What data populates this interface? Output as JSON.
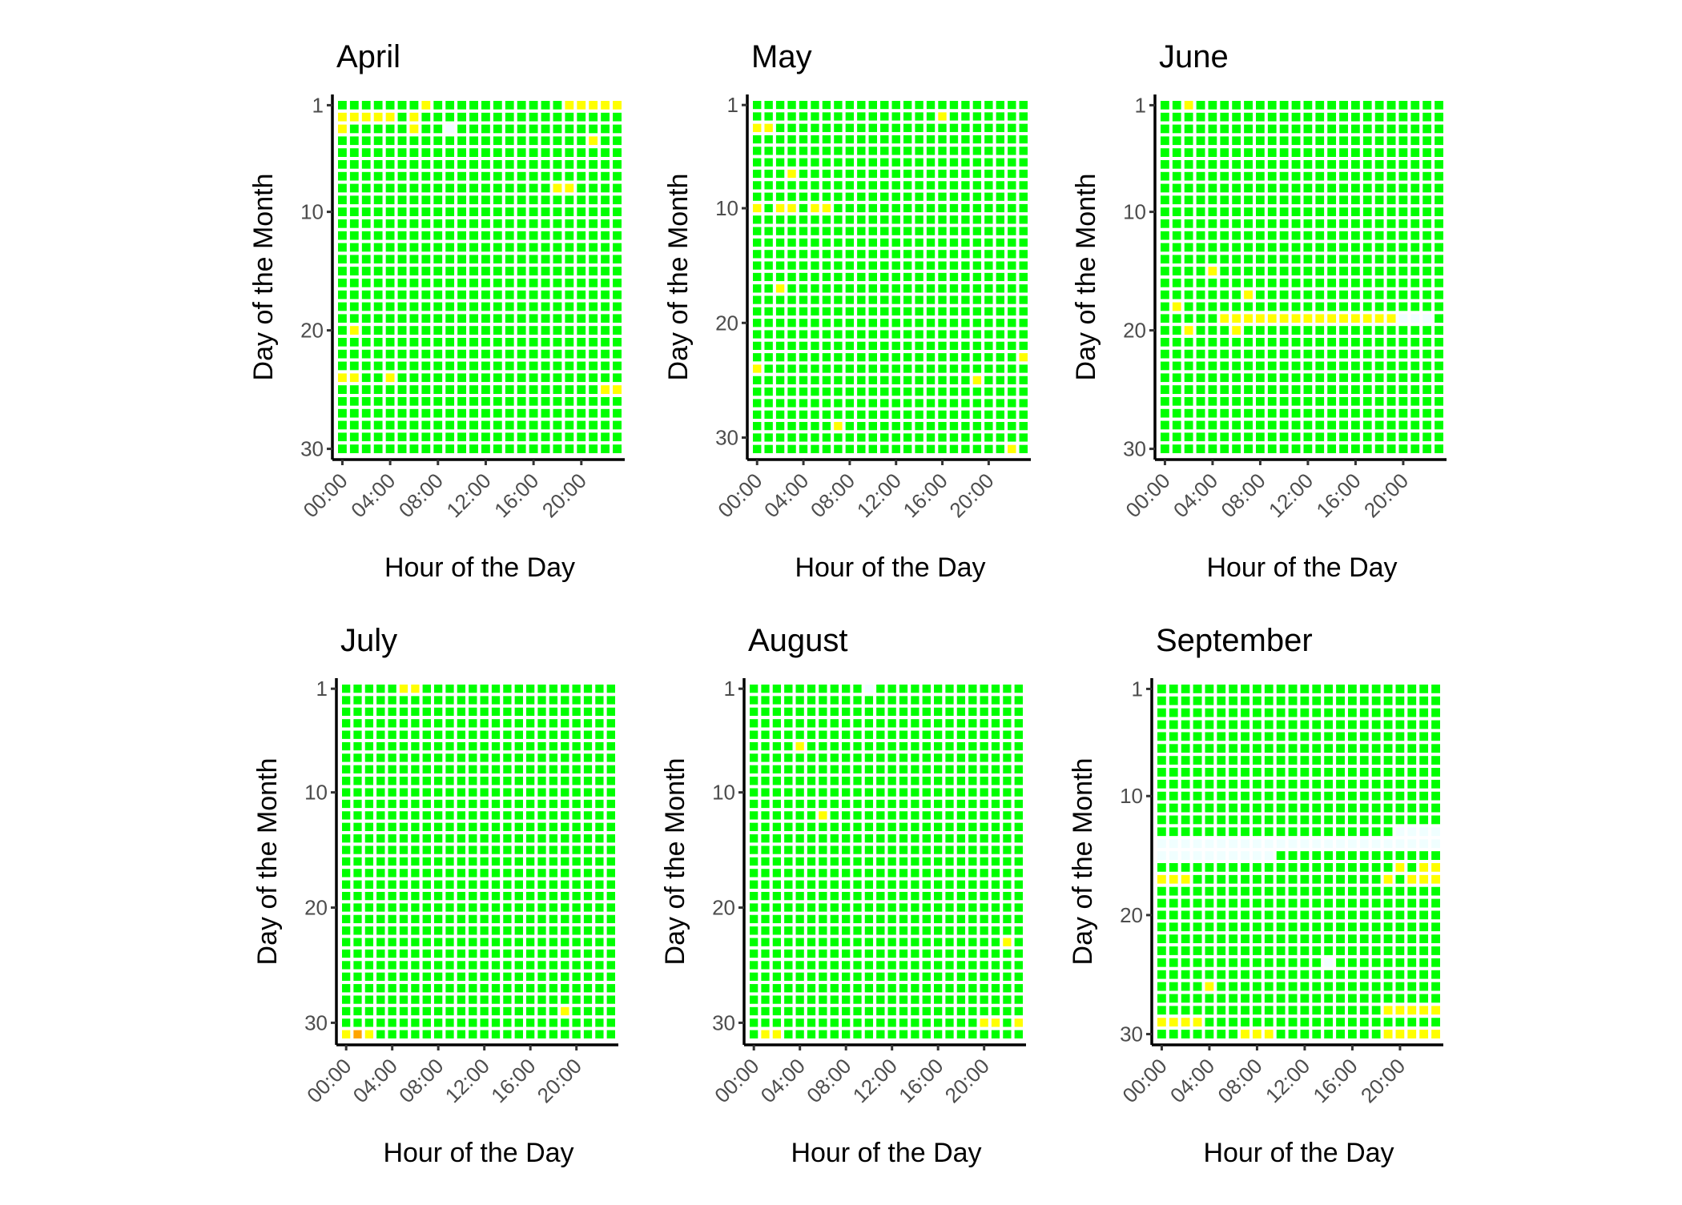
{
  "chart_data": [
    {
      "type": "heatmap",
      "title": "April",
      "xlabel": "Hour of the Day",
      "ylabel": "Day of the Month",
      "days": 30,
      "x_ticks": [
        "00:00",
        "04:00",
        "08:00",
        "12:00",
        "16:00",
        "20:00"
      ],
      "y_ticks": [
        1,
        10,
        20,
        30
      ],
      "default_color": "green",
      "cells": [
        {
          "day": 1,
          "hours": [
            7,
            19,
            20,
            21,
            22,
            23
          ],
          "color": "yellow"
        },
        {
          "day": 2,
          "hours": [
            0,
            1,
            2,
            3,
            4,
            6
          ],
          "color": "yellow"
        },
        {
          "day": 3,
          "hours": [
            0,
            6
          ],
          "color": "yellow"
        },
        {
          "day": 3,
          "hours": [
            9
          ],
          "color": "azure"
        },
        {
          "day": 4,
          "hours": [
            21
          ],
          "color": "yellow"
        },
        {
          "day": 8,
          "hours": [
            18,
            19
          ],
          "color": "yellow"
        },
        {
          "day": 20,
          "hours": [
            1
          ],
          "color": "yellow"
        },
        {
          "day": 24,
          "hours": [
            0,
            1,
            4
          ],
          "color": "yellow"
        },
        {
          "day": 25,
          "hours": [
            22,
            23
          ],
          "color": "yellow"
        }
      ]
    },
    {
      "type": "heatmap",
      "title": "May",
      "xlabel": "Hour of the Day",
      "ylabel": "Day of the Month",
      "days": 31,
      "x_ticks": [
        "00:00",
        "04:00",
        "08:00",
        "12:00",
        "16:00",
        "20:00"
      ],
      "y_ticks": [
        1,
        10,
        20,
        30
      ],
      "default_color": "green",
      "cells": [
        {
          "day": 2,
          "hours": [
            16
          ],
          "color": "yellow"
        },
        {
          "day": 3,
          "hours": [
            0,
            1
          ],
          "color": "yellow"
        },
        {
          "day": 7,
          "hours": [
            3
          ],
          "color": "yellow"
        },
        {
          "day": 10,
          "hours": [
            0,
            2,
            3,
            5,
            6
          ],
          "color": "yellow"
        },
        {
          "day": 17,
          "hours": [
            2
          ],
          "color": "yellow"
        },
        {
          "day": 23,
          "hours": [
            23
          ],
          "color": "yellow"
        },
        {
          "day": 24,
          "hours": [
            0
          ],
          "color": "yellow"
        },
        {
          "day": 25,
          "hours": [
            19
          ],
          "color": "yellow"
        },
        {
          "day": 29,
          "hours": [
            7
          ],
          "color": "yellow"
        },
        {
          "day": 31,
          "hours": [
            22
          ],
          "color": "yellow"
        }
      ]
    },
    {
      "type": "heatmap",
      "title": "June",
      "xlabel": "Hour of the Day",
      "ylabel": "Day of the Month",
      "days": 30,
      "x_ticks": [
        "00:00",
        "04:00",
        "08:00",
        "12:00",
        "16:00",
        "20:00"
      ],
      "y_ticks": [
        1,
        10,
        20,
        30
      ],
      "default_color": "green",
      "cells": [
        {
          "day": 1,
          "hours": [
            2
          ],
          "color": "yellow"
        },
        {
          "day": 15,
          "hours": [
            4
          ],
          "color": "yellow"
        },
        {
          "day": 17,
          "hours": [
            7
          ],
          "color": "yellow"
        },
        {
          "day": 18,
          "hours": [
            1
          ],
          "color": "yellow"
        },
        {
          "day": 19,
          "hours": [
            5,
            6,
            7,
            8,
            9,
            10,
            11,
            12,
            13,
            14,
            15,
            16,
            17,
            18,
            19
          ],
          "color": "yellow"
        },
        {
          "day": 19,
          "hours": [
            20,
            21,
            22
          ],
          "color": "azure"
        },
        {
          "day": 20,
          "hours": [
            2,
            6
          ],
          "color": "yellow"
        }
      ]
    },
    {
      "type": "heatmap",
      "title": "July",
      "xlabel": "Hour of the Day",
      "ylabel": "Day of the Month",
      "days": 31,
      "x_ticks": [
        "00:00",
        "04:00",
        "08:00",
        "12:00",
        "16:00",
        "20:00"
      ],
      "y_ticks": [
        1,
        10,
        20,
        30
      ],
      "default_color": "green",
      "cells": [
        {
          "day": 1,
          "hours": [
            5,
            6
          ],
          "color": "yellow"
        },
        {
          "day": 29,
          "hours": [
            19
          ],
          "color": "yellow"
        },
        {
          "day": 31,
          "hours": [
            0,
            2
          ],
          "color": "yellow"
        },
        {
          "day": 31,
          "hours": [
            1
          ],
          "color": "orange"
        }
      ]
    },
    {
      "type": "heatmap",
      "title": "August",
      "xlabel": "Hour of the Day",
      "ylabel": "Day of the Month",
      "days": 31,
      "x_ticks": [
        "00:00",
        "04:00",
        "08:00",
        "12:00",
        "16:00",
        "20:00"
      ],
      "y_ticks": [
        1,
        10,
        20,
        30
      ],
      "default_color": "green",
      "cells": [
        {
          "day": 1,
          "hours": [
            10
          ],
          "color": "azure"
        },
        {
          "day": 6,
          "hours": [
            4
          ],
          "color": "yellow"
        },
        {
          "day": 12,
          "hours": [
            6
          ],
          "color": "yellow"
        },
        {
          "day": 23,
          "hours": [
            22
          ],
          "color": "yellow"
        },
        {
          "day": 30,
          "hours": [
            20,
            21,
            23
          ],
          "color": "yellow"
        },
        {
          "day": 31,
          "hours": [
            1,
            2
          ],
          "color": "yellow"
        }
      ]
    },
    {
      "type": "heatmap",
      "title": "September",
      "xlabel": "Hour of the Day",
      "ylabel": "Day of the Month",
      "days": 30,
      "x_ticks": [
        "00:00",
        "04:00",
        "08:00",
        "12:00",
        "16:00",
        "20:00"
      ],
      "y_ticks": [
        1,
        10,
        20,
        30
      ],
      "default_color": "green",
      "cells": [
        {
          "day": 13,
          "hours": [
            20,
            21,
            22,
            23
          ],
          "color": "azure"
        },
        {
          "day": 14,
          "hours": [
            0,
            1,
            2,
            3,
            4,
            5,
            6,
            7,
            8,
            9,
            10,
            11,
            12,
            13,
            14,
            15,
            16,
            17,
            18,
            19,
            20,
            21,
            22,
            23
          ],
          "color": "azure"
        },
        {
          "day": 15,
          "hours": [
            0,
            1,
            2,
            3,
            4,
            5,
            6,
            7,
            8,
            9
          ],
          "color": "azure"
        },
        {
          "day": 16,
          "hours": [
            20,
            22,
            23
          ],
          "color": "yellow"
        },
        {
          "day": 17,
          "hours": [
            0,
            1,
            2,
            19,
            21,
            22,
            23
          ],
          "color": "yellow"
        },
        {
          "day": 24,
          "hours": [
            14
          ],
          "color": "azure"
        },
        {
          "day": 26,
          "hours": [
            4
          ],
          "color": "yellow"
        },
        {
          "day": 28,
          "hours": [
            19,
            20,
            21,
            22,
            23
          ],
          "color": "yellow"
        },
        {
          "day": 29,
          "hours": [
            0,
            1,
            2,
            3
          ],
          "color": "yellow"
        },
        {
          "day": 30,
          "hours": [
            7,
            8,
            9,
            19,
            20,
            21,
            22,
            23
          ],
          "color": "yellow"
        }
      ]
    }
  ],
  "colors": {
    "green": "#00FF00",
    "yellow": "#FFFF00",
    "orange": "#FFA500",
    "azure": "#F0FFFF",
    "axis": "#000000",
    "tick_text": "#4D4D4D"
  }
}
